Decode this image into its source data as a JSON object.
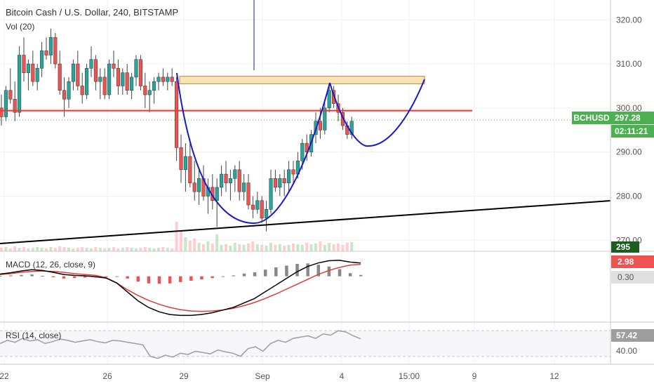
{
  "header": {
    "title": "Bitcoin Cash / U.S. Dollar, 240, BITSTAMP",
    "vol_label": "Vol (20)"
  },
  "colors": {
    "up": "#26a69a",
    "down": "#ef5350",
    "resistance": "#e53935",
    "trend": "#000000",
    "cup": "#1a1acc",
    "zone_fill": "#fbe3b8",
    "zone_stroke": "#b58b3c",
    "price_tag": "#4caf50",
    "vol_tag": "#1b5e20",
    "macd_tag": "#ef5350",
    "macd_line": "#000000",
    "signal_line": "#e53935",
    "hist_pos": "#888888",
    "hist_neg": "#ef5350",
    "rsi_line": "#9e9e9e"
  },
  "price_scale": {
    "ticks": [
      "320.00",
      "310.00",
      "300.00",
      "290.00",
      "280.00",
      "270.00"
    ],
    "ylim": [
      267.5,
      324.5
    ]
  },
  "price_tags": {
    "symbol": "BCHUSD",
    "last": "297.28",
    "countdown": "02:11:21",
    "volume": "295"
  },
  "x_axis": {
    "ticks": [
      "22",
      "26",
      "29",
      "Sep",
      "4",
      "15:00",
      "9",
      "12"
    ]
  },
  "macd": {
    "label": "MACD (12, 26, close, 9)",
    "value_a": "2.98",
    "value_b": "0.30"
  },
  "rsi": {
    "label": "RSI (14, close)",
    "value": "57.42",
    "level": "40.00"
  },
  "chart_data": {
    "type": "candlestick",
    "title": "Bitcoin Cash / U.S. Dollar, 240, BITSTAMP",
    "ylim": [
      267.5,
      324.5
    ],
    "resistance_level": 299.4,
    "supply_zone": [
      305.5,
      307.2
    ],
    "last_price": 297.28,
    "candles": [
      [
        300,
        303,
        296,
        298
      ],
      [
        298,
        305,
        297,
        304
      ],
      [
        304,
        309,
        301,
        302
      ],
      [
        302,
        306,
        297,
        299
      ],
      [
        299,
        314,
        298,
        312
      ],
      [
        312,
        316,
        306,
        308
      ],
      [
        308,
        311,
        304,
        310
      ],
      [
        310,
        313,
        305,
        306
      ],
      [
        306,
        310,
        304,
        309
      ],
      [
        309,
        315,
        307,
        313
      ],
      [
        313,
        316,
        311,
        312
      ],
      [
        312,
        318,
        310,
        316
      ],
      [
        316,
        317,
        309,
        310
      ],
      [
        310,
        313,
        303,
        304
      ],
      [
        304,
        307,
        298,
        302
      ],
      [
        302,
        307,
        300,
        306
      ],
      [
        306,
        311,
        304,
        310
      ],
      [
        310,
        313,
        304,
        305
      ],
      [
        305,
        308,
        301,
        303
      ],
      [
        303,
        310,
        302,
        309
      ],
      [
        309,
        314,
        307,
        311
      ],
      [
        311,
        312,
        304,
        306
      ],
      [
        306,
        309,
        302,
        307
      ],
      [
        307,
        309,
        302,
        303
      ],
      [
        303,
        311,
        302,
        310
      ],
      [
        310,
        313,
        307,
        309
      ],
      [
        309,
        311,
        303,
        305
      ],
      [
        305,
        309,
        303,
        308
      ],
      [
        308,
        310,
        303,
        304
      ],
      [
        304,
        308,
        302,
        307
      ],
      [
        307,
        312,
        305,
        311
      ],
      [
        311,
        312,
        304,
        305
      ],
      [
        305,
        308,
        300,
        303
      ],
      [
        303,
        306,
        299,
        304
      ],
      [
        304,
        307,
        301,
        306
      ],
      [
        306,
        308,
        304,
        307
      ],
      [
        307,
        309,
        305,
        306
      ],
      [
        306,
        308,
        304,
        307
      ],
      [
        307,
        309,
        305,
        306
      ],
      [
        306,
        307,
        288,
        291
      ],
      [
        291,
        294,
        283,
        286
      ],
      [
        286,
        292,
        281,
        289
      ],
      [
        289,
        293,
        282,
        283
      ],
      [
        283,
        288,
        279,
        281
      ],
      [
        281,
        286,
        278,
        284
      ],
      [
        284,
        287,
        279,
        280
      ],
      [
        280,
        284,
        276,
        282
      ],
      [
        282,
        285,
        277,
        279
      ],
      [
        279,
        284,
        273,
        282
      ],
      [
        282,
        287,
        280,
        285
      ],
      [
        285,
        288,
        281,
        283
      ],
      [
        283,
        286,
        279,
        284
      ],
      [
        284,
        287,
        281,
        286
      ],
      [
        286,
        288,
        279,
        281
      ],
      [
        281,
        285,
        279,
        283
      ],
      [
        283,
        285,
        277,
        278
      ],
      [
        278,
        280,
        275,
        277
      ],
      [
        277,
        281,
        276,
        279
      ],
      [
        279,
        280,
        274,
        275
      ],
      [
        275,
        279,
        272,
        277
      ],
      [
        277,
        286,
        276,
        284
      ],
      [
        284,
        286,
        281,
        282
      ],
      [
        282,
        285,
        280,
        284
      ],
      [
        284,
        286,
        280,
        283
      ],
      [
        283,
        288,
        281,
        286
      ],
      [
        286,
        288,
        283,
        285
      ],
      [
        285,
        290,
        284,
        288
      ],
      [
        288,
        293,
        286,
        292
      ],
      [
        292,
        294,
        288,
        290
      ],
      [
        290,
        295,
        289,
        294
      ],
      [
        294,
        299,
        292,
        297
      ],
      [
        297,
        300,
        293,
        295
      ],
      [
        295,
        302,
        294,
        300
      ],
      [
        300,
        306,
        299,
        304
      ],
      [
        304,
        305,
        300,
        301
      ],
      [
        301,
        303,
        297,
        299
      ],
      [
        299,
        300,
        295,
        296
      ],
      [
        296,
        297,
        293,
        294
      ],
      [
        294,
        298,
        293,
        297
      ]
    ],
    "volume": [
      5,
      6,
      4,
      7,
      5,
      6,
      4,
      5,
      6,
      5,
      4,
      6,
      5,
      7,
      6,
      5,
      4,
      5,
      6,
      5,
      4,
      6,
      5,
      4,
      5,
      6,
      4,
      5,
      6,
      5,
      4,
      5,
      6,
      5,
      4,
      5,
      6,
      5,
      4,
      42,
      30,
      20,
      15,
      18,
      12,
      10,
      14,
      11,
      24,
      9,
      10,
      8,
      12,
      10,
      9,
      11,
      14,
      10,
      9,
      8,
      12,
      9,
      10,
      8,
      9,
      11,
      10,
      9,
      12,
      10,
      11,
      14,
      9,
      12,
      10,
      11,
      9,
      12,
      13
    ],
    "macd_line": [
      0.5,
      0.8,
      1.2,
      1.5,
      1.3,
      0.9,
      0.4,
      0.2,
      0.1,
      -0.1,
      -0.4,
      -1.5,
      -3.5,
      -5.5,
      -7,
      -8,
      -8.6,
      -8.8,
      -8.8,
      -8.6,
      -8.2,
      -7.6,
      -7,
      -6,
      -5,
      -3.5,
      -2,
      -0.5,
      1,
      2.2,
      3,
      3.5,
      3.6,
      3.2,
      2.98
    ],
    "signal_line": [
      0.4,
      0.6,
      0.9,
      1.1,
      1.2,
      1.1,
      0.9,
      0.6,
      0.4,
      0.2,
      -0.3,
      -1.5,
      -3,
      -4.3,
      -5.4,
      -6.3,
      -7,
      -7.5,
      -7.8,
      -7.9,
      -7.8,
      -7.6,
      -7.2,
      -6.6,
      -5.9,
      -5,
      -4,
      -2.9,
      -1.8,
      -0.7,
      0.4,
      1.3,
      2,
      2.5,
      2.68
    ],
    "rsi_values": [
      50,
      55,
      52,
      58,
      54,
      56,
      50,
      53,
      57,
      55,
      52,
      54,
      56,
      53,
      51,
      55,
      54,
      52,
      50,
      48,
      30,
      27,
      32,
      29,
      35,
      33,
      38,
      36,
      34,
      40,
      37,
      35,
      30,
      42,
      45,
      38,
      50,
      55,
      52,
      58,
      60,
      62,
      58,
      65,
      63,
      70,
      68,
      62,
      57.42
    ]
  }
}
